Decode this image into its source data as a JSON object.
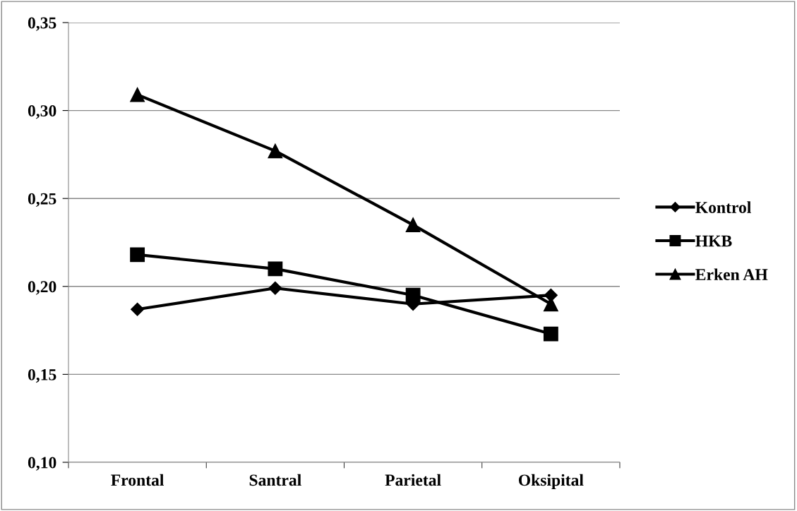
{
  "chart_data": {
    "type": "line",
    "categories": [
      "Frontal",
      "Santral",
      "Parietal",
      "Oksipital"
    ],
    "series": [
      {
        "name": "Kontrol",
        "color": "#000000",
        "marker": "diamond",
        "values": [
          0.187,
          0.199,
          0.19,
          0.195
        ]
      },
      {
        "name": "HKB",
        "color": "#000000",
        "marker": "square",
        "values": [
          0.218,
          0.21,
          0.195,
          0.173
        ]
      },
      {
        "name": "Erken AH",
        "color": "#000000",
        "marker": "triangle",
        "values": [
          0.309,
          0.277,
          0.235,
          0.19
        ]
      }
    ],
    "ylim": [
      0.1,
      0.35
    ],
    "yticks": [
      {
        "value": 0.1,
        "label": "0,10"
      },
      {
        "value": 0.15,
        "label": "0,15"
      },
      {
        "value": 0.2,
        "label": "0,20"
      },
      {
        "value": 0.25,
        "label": "0,25"
      },
      {
        "value": 0.3,
        "label": "0,30"
      },
      {
        "value": 0.35,
        "label": "0,35"
      }
    ],
    "grid": "y",
    "legend": "right",
    "line_style": "solid"
  }
}
